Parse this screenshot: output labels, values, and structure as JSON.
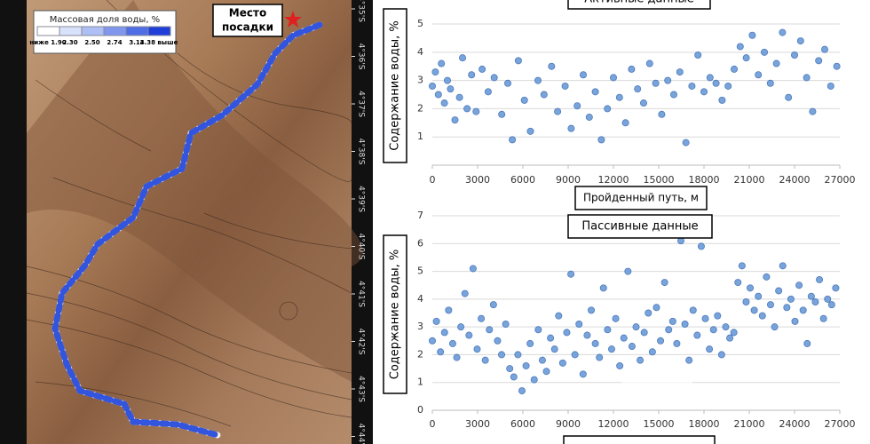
{
  "map": {
    "legend_title": "Массовая доля воды, %",
    "legend_labels": [
      "ниже 1.90",
      "2.30",
      "2.50",
      "2.74",
      "3.14",
      "3.38 выше"
    ],
    "landing_label": [
      "Место",
      "посадки"
    ],
    "latitudes": [
      "4°35'S",
      "4°36'S",
      "4°37'S",
      "4°38'S",
      "4°39'S",
      "4°40'S",
      "4°41'S",
      "4°42'S",
      "4°43'S",
      "4°44'S"
    ]
  },
  "chart_data": [
    {
      "type": "scatter",
      "title": "Активные данные",
      "xlabel": "Пройденный путь, м",
      "ylabel": "Содержание воды, %",
      "color": "#6a9bd8",
      "grid": true,
      "xlim": [
        0,
        27000
      ],
      "ylim": [
        0,
        5.85
      ],
      "xticks": [
        0,
        3000,
        6000,
        9000,
        12000,
        15000,
        18000,
        21000,
        24000,
        27000
      ],
      "yticks": [
        1,
        2,
        3,
        4,
        5
      ],
      "x": [
        0,
        200,
        400,
        600,
        800,
        1000,
        1200,
        1500,
        1800,
        2000,
        2300,
        2600,
        2900,
        3300,
        3700,
        4100,
        4600,
        5000,
        5300,
        5700,
        6100,
        6500,
        7000,
        7400,
        7900,
        8300,
        8800,
        9200,
        9600,
        10000,
        10400,
        10800,
        11200,
        11600,
        12000,
        12400,
        12800,
        13200,
        13600,
        14000,
        14400,
        14800,
        15200,
        15600,
        16000,
        16400,
        16800,
        17200,
        17600,
        18000,
        18400,
        18800,
        19200,
        19600,
        20000,
        20400,
        20800,
        21200,
        21600,
        22000,
        22400,
        22800,
        23200,
        23600,
        24000,
        24400,
        24800,
        25200,
        25600,
        26000,
        26400,
        26800
      ],
      "values": [
        2.8,
        3.3,
        2.5,
        3.6,
        2.2,
        3.0,
        2.7,
        1.6,
        2.4,
        3.8,
        2.0,
        3.2,
        1.9,
        3.4,
        2.6,
        3.1,
        1.8,
        2.9,
        0.9,
        3.7,
        2.3,
        1.2,
        3.0,
        2.5,
        3.5,
        1.9,
        2.8,
        1.3,
        2.1,
        3.2,
        1.7,
        2.6,
        0.9,
        2.0,
        3.1,
        2.4,
        1.5,
        3.4,
        2.7,
        2.2,
        3.6,
        2.9,
        1.8,
        3.0,
        2.5,
        3.3,
        0.8,
        2.8,
        3.9,
        2.6,
        3.1,
        2.9,
        2.3,
        2.8,
        3.4,
        4.2,
        3.8,
        4.6,
        3.2,
        4.0,
        2.9,
        3.6,
        4.7,
        2.4,
        3.9,
        4.4,
        3.1,
        1.9,
        3.7,
        4.1,
        2.8,
        3.5
      ]
    },
    {
      "type": "scatter",
      "title": "Пассивные данные",
      "ylabel": "Содержание воды, %",
      "color": "#6a9bd8",
      "grid": true,
      "xlim": [
        0,
        27000
      ],
      "ylim": [
        0,
        7
      ],
      "xticks": [
        0,
        3000,
        6000,
        9000,
        12000,
        15000,
        18000,
        21000,
        24000,
        27000
      ],
      "yticks": [
        0,
        1,
        2,
        3,
        4,
        5,
        6,
        7
      ],
      "x": [
        0,
        270,
        540,
        810,
        1080,
        1350,
        1620,
        1890,
        2160,
        2430,
        2700,
        2970,
        3240,
        3510,
        3780,
        4050,
        4320,
        4590,
        4860,
        5130,
        5400,
        5670,
        5940,
        6210,
        6480,
        6750,
        7020,
        7290,
        7560,
        7830,
        8100,
        8370,
        8640,
        8910,
        9180,
        9450,
        9720,
        9990,
        10260,
        10530,
        10800,
        11070,
        11340,
        11610,
        11880,
        12150,
        12420,
        12690,
        12960,
        13230,
        13500,
        13770,
        14040,
        14310,
        14580,
        14850,
        15120,
        15390,
        15660,
        15930,
        16200,
        16470,
        16740,
        17010,
        17280,
        17550,
        17820,
        18090,
        18360,
        18630,
        18900,
        19170,
        19440,
        19710,
        19980,
        20250,
        20520,
        20790,
        21060,
        21330,
        21600,
        21870,
        22140,
        22410,
        22680,
        22950,
        23220,
        23490,
        23760,
        24030,
        24300,
        24570,
        24840,
        25110,
        25380,
        25650,
        25920,
        26190,
        26460,
        26730
      ],
      "values": [
        2.5,
        3.2,
        2.1,
        2.8,
        3.6,
        2.4,
        1.9,
        3.0,
        4.2,
        2.7,
        5.1,
        2.2,
        3.3,
        1.8,
        2.9,
        3.8,
        2.5,
        2.0,
        3.1,
        1.5,
        1.2,
        2.0,
        0.7,
        1.6,
        2.4,
        1.1,
        2.9,
        1.8,
        1.4,
        2.6,
        2.2,
        3.4,
        1.7,
        2.8,
        4.9,
        2.0,
        3.1,
        1.3,
        2.7,
        3.6,
        2.4,
        1.9,
        4.4,
        2.9,
        2.2,
        3.3,
        1.6,
        2.6,
        5.0,
        2.3,
        3.0,
        1.8,
        2.8,
        3.5,
        2.1,
        3.7,
        2.5,
        4.6,
        2.9,
        3.2,
        2.4,
        6.1,
        3.1,
        1.8,
        3.6,
        2.7,
        5.9,
        3.3,
        2.2,
        2.9,
        3.4,
        2.0,
        3.0,
        2.6,
        2.8,
        4.6,
        5.2,
        3.9,
        4.4,
        3.6,
        4.1,
        3.4,
        4.8,
        3.8,
        3.0,
        4.3,
        5.2,
        3.7,
        4.0,
        3.2,
        4.5,
        3.6,
        2.4,
        4.1,
        3.9,
        4.7,
        3.3,
        4.0,
        3.8,
        4.4
      ]
    }
  ]
}
